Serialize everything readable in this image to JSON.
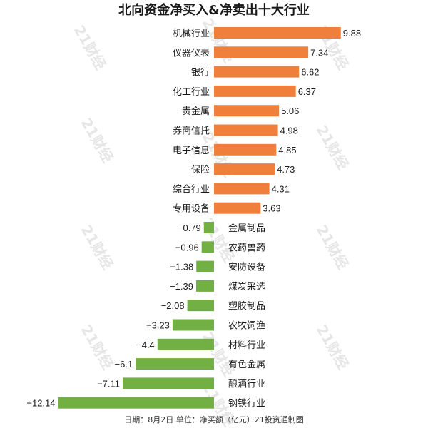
{
  "colors": {
    "positive": "#f07f3c",
    "negative": "#72b043",
    "text": "#1a1a1a",
    "watermark": "#e6e6e6"
  },
  "watermark_text": "21财经",
  "chart_data": {
    "type": "bar",
    "orientation": "horizontal",
    "title": "北向资金净买入&净卖出十大行业",
    "footer": "日期：8月2日 单位：净买额（亿元）21投资通制图",
    "categories": [
      "机械行业",
      "仪器仪表",
      "银行",
      "化工行业",
      "贵金属",
      "券商信托",
      "电子信息",
      "保险",
      "综合行业",
      "专用设备",
      "金属制品",
      "农药兽药",
      "安防设备",
      "煤炭采选",
      "塑胶制品",
      "农牧饲渔",
      "材料行业",
      "有色金属",
      "酿酒行业",
      "钢铁行业"
    ],
    "values": [
      9.88,
      7.34,
      6.62,
      6.37,
      5.06,
      4.98,
      4.85,
      4.73,
      4.31,
      3.63,
      -0.79,
      -0.96,
      -1.38,
      -1.39,
      -2.08,
      -3.23,
      -4.4,
      -6.1,
      -7.11,
      -12.14
    ],
    "value_labels": [
      "9.88",
      "7.34",
      "6.62",
      "6.37",
      "5.06",
      "4.98",
      "4.85",
      "4.73",
      "4.31",
      "3.63",
      "−0.79",
      "−0.96",
      "−1.38",
      "−1.39",
      "−2.08",
      "−3.23",
      "−4.4",
      "−6.1",
      "−7.11",
      "−12.14"
    ],
    "xlim": [
      -12.14,
      9.88
    ],
    "grid": false,
    "legend": "none"
  }
}
